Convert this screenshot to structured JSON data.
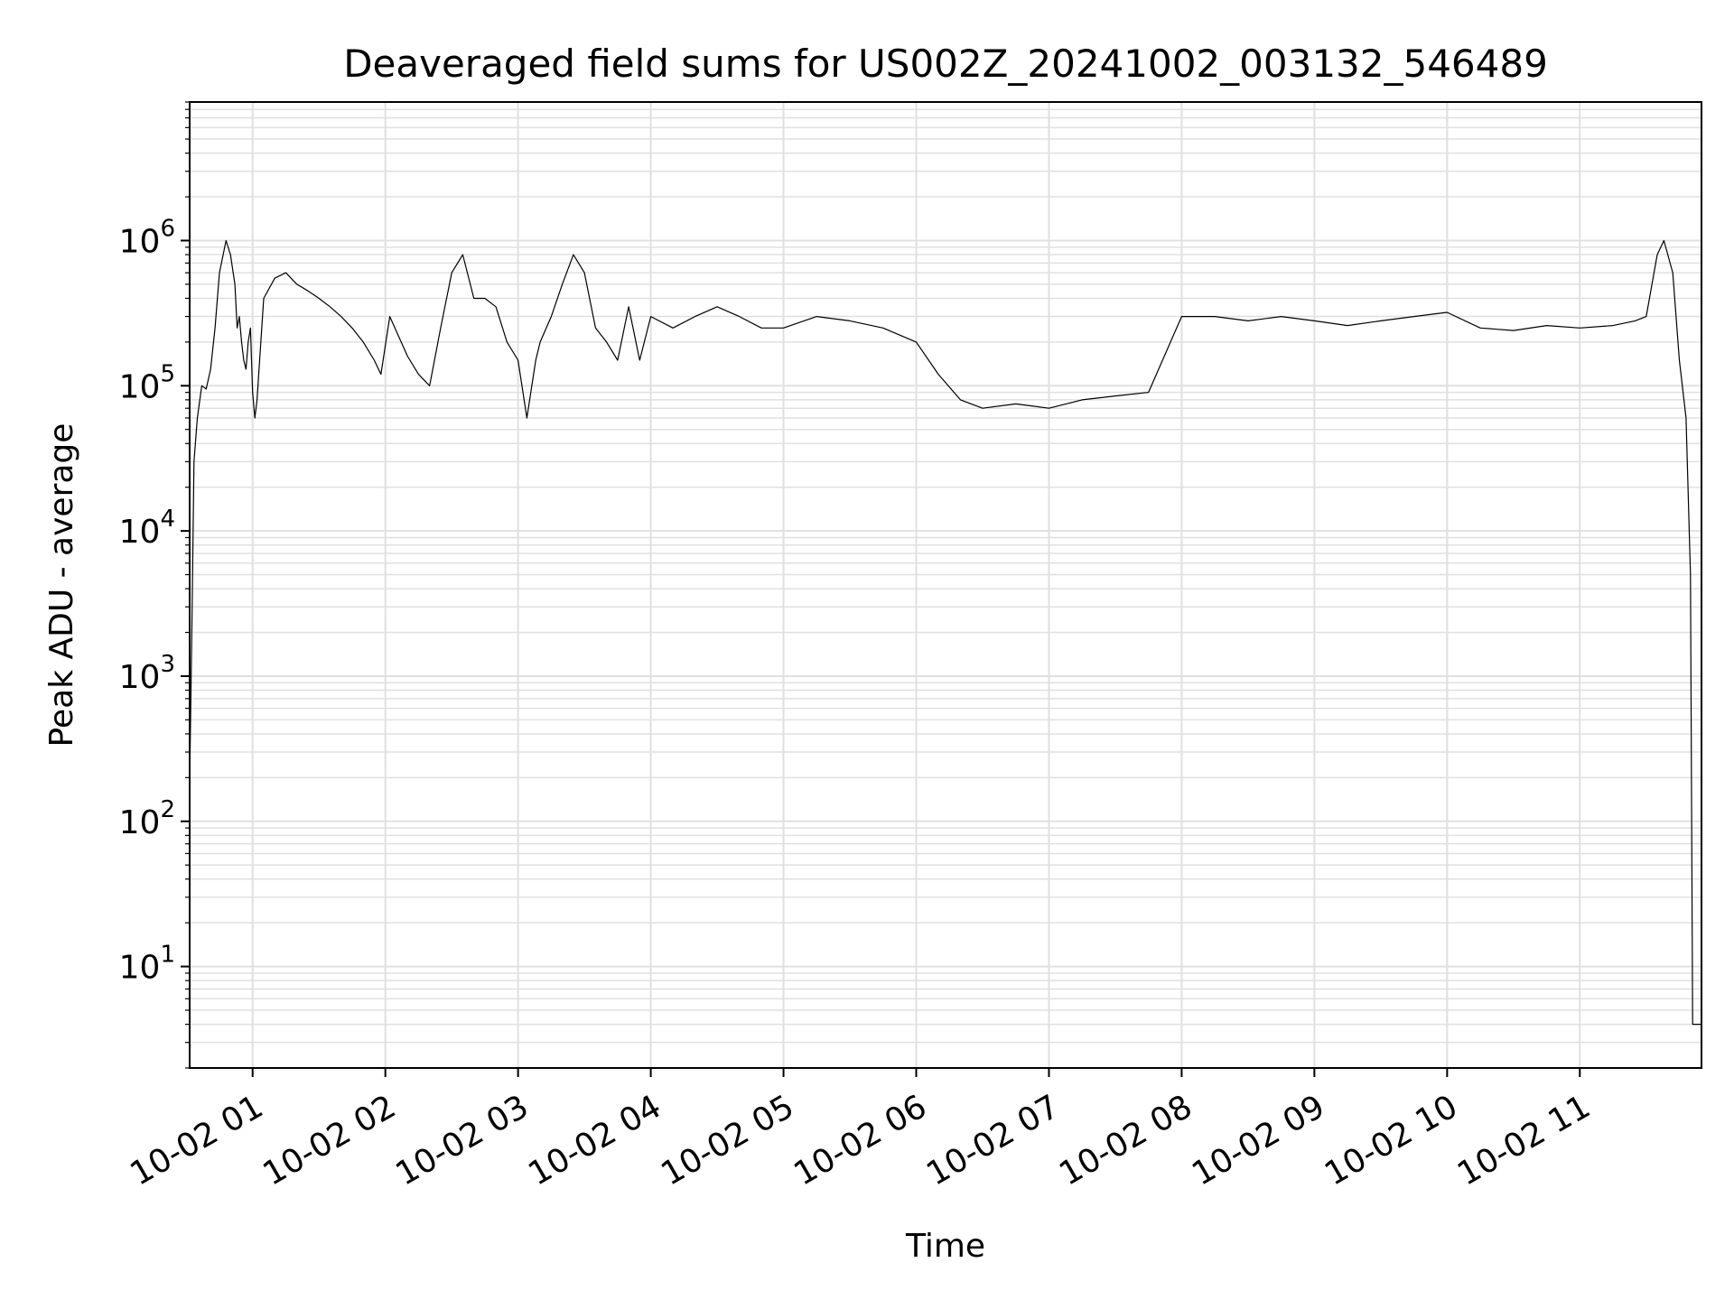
{
  "chart_data": {
    "type": "line",
    "title": "Deaveraged field sums for US002Z_20241002_003132_546489",
    "xlabel": "Time",
    "ylabel": "Peak ADU - average",
    "yscale": "log",
    "ylim": [
      2,
      9000000
    ],
    "xlim": [
      "2024-10-02 00:31:32",
      "2024-10-02 11:55:00"
    ],
    "grid": true,
    "line_color": "#000000",
    "grid_color": "#e0e0e0",
    "x_ticks": [
      {
        "value": "2024-10-02 01:00",
        "label": "10-02 01"
      },
      {
        "value": "2024-10-02 02:00",
        "label": "10-02 02"
      },
      {
        "value": "2024-10-02 03:00",
        "label": "10-02 03"
      },
      {
        "value": "2024-10-02 04:00",
        "label": "10-02 04"
      },
      {
        "value": "2024-10-02 05:00",
        "label": "10-02 05"
      },
      {
        "value": "2024-10-02 06:00",
        "label": "10-02 06"
      },
      {
        "value": "2024-10-02 07:00",
        "label": "10-02 07"
      },
      {
        "value": "2024-10-02 08:00",
        "label": "10-02 08"
      },
      {
        "value": "2024-10-02 09:00",
        "label": "10-02 09"
      },
      {
        "value": "2024-10-02 10:00",
        "label": "10-02 10"
      },
      {
        "value": "2024-10-02 11:00",
        "label": "10-02 11"
      }
    ],
    "y_ticks": [
      {
        "value": 10,
        "exp": "1"
      },
      {
        "value": 100,
        "exp": "2"
      },
      {
        "value": 1000,
        "exp": "3"
      },
      {
        "value": 10000,
        "exp": "4"
      },
      {
        "value": 100000,
        "exp": "5"
      },
      {
        "value": 1000000,
        "exp": "6"
      }
    ],
    "series": [
      {
        "x": [
          "2024-10-02 00:31:40",
          "2024-10-02 00:32:30",
          "2024-10-02 00:33:30",
          "2024-10-02 00:35:00",
          "2024-10-02 00:37:00",
          "2024-10-02 00:39:00",
          "2024-10-02 00:41:00",
          "2024-10-02 00:43:00",
          "2024-10-02 00:45:00",
          "2024-10-02 00:48:00",
          "2024-10-02 00:50:00",
          "2024-10-02 00:52:00",
          "2024-10-02 00:53:00",
          "2024-10-02 00:54:00",
          "2024-10-02 00:55:00",
          "2024-10-02 00:56:00",
          "2024-10-02 00:57:00",
          "2024-10-02 00:58:00",
          "2024-10-02 00:59:00",
          "2024-10-02 01:00:00",
          "2024-10-02 01:01:00",
          "2024-10-02 01:02:00",
          "2024-10-02 01:05:00",
          "2024-10-02 01:10:00",
          "2024-10-02 01:15:00",
          "2024-10-02 01:20:00",
          "2024-10-02 01:25:00",
          "2024-10-02 01:30:00",
          "2024-10-02 01:35:00",
          "2024-10-02 01:40:00",
          "2024-10-02 01:45:00",
          "2024-10-02 01:50:00",
          "2024-10-02 01:55:00",
          "2024-10-02 01:58:00",
          "2024-10-02 02:02:00",
          "2024-10-02 02:10:00",
          "2024-10-02 02:15:00",
          "2024-10-02 02:20:00",
          "2024-10-02 02:25:00",
          "2024-10-02 02:30:00",
          "2024-10-02 02:35:00",
          "2024-10-02 02:40:00",
          "2024-10-02 02:45:00",
          "2024-10-02 02:50:00",
          "2024-10-02 02:55:00",
          "2024-10-02 03:00:00",
          "2024-10-02 03:04:00",
          "2024-10-02 03:08:00",
          "2024-10-02 03:10:00",
          "2024-10-02 03:15:00",
          "2024-10-02 03:20:00",
          "2024-10-02 03:25:00",
          "2024-10-02 03:30:00",
          "2024-10-02 03:35:00",
          "2024-10-02 03:40:00",
          "2024-10-02 03:45:00",
          "2024-10-02 03:50:00",
          "2024-10-02 03:55:00",
          "2024-10-02 04:00:00",
          "2024-10-02 04:10:00",
          "2024-10-02 04:20:00",
          "2024-10-02 04:30:00",
          "2024-10-02 04:40:00",
          "2024-10-02 04:50:00",
          "2024-10-02 05:00:00",
          "2024-10-02 05:15:00",
          "2024-10-02 05:30:00",
          "2024-10-02 05:45:00",
          "2024-10-02 06:00:00",
          "2024-10-02 06:10:00",
          "2024-10-02 06:20:00",
          "2024-10-02 06:30:00",
          "2024-10-02 06:45:00",
          "2024-10-02 07:00:00",
          "2024-10-02 07:15:00",
          "2024-10-02 07:30:00",
          "2024-10-02 07:45:00",
          "2024-10-02 08:00:00",
          "2024-10-02 08:15:00",
          "2024-10-02 08:30:00",
          "2024-10-02 08:45:00",
          "2024-10-02 09:00:00",
          "2024-10-02 09:15:00",
          "2024-10-02 09:30:00",
          "2024-10-02 09:45:00",
          "2024-10-02 10:00:00",
          "2024-10-02 10:15:00",
          "2024-10-02 10:30:00",
          "2024-10-02 10:45:00",
          "2024-10-02 11:00:00",
          "2024-10-02 11:15:00",
          "2024-10-02 11:25:00",
          "2024-10-02 11:30:00",
          "2024-10-02 11:35:00",
          "2024-10-02 11:38:00",
          "2024-10-02 11:42:00",
          "2024-10-02 11:45:00",
          "2024-10-02 11:48:00",
          "2024-10-02 11:50:00",
          "2024-10-02 11:51:00",
          "2024-10-02 11:52:00",
          "2024-10-02 11:53:00",
          "2024-10-02 11:54:00",
          "2024-10-02 11:55:00"
        ],
        "y": [
          250,
          2000,
          30000,
          60000,
          100000,
          95000,
          130000,
          250000,
          600000,
          1000000,
          800000,
          500000,
          250000,
          300000,
          200000,
          150000,
          130000,
          200000,
          250000,
          90000,
          60000,
          80000,
          400000,
          550000,
          600000,
          500000,
          450000,
          400000,
          350000,
          300000,
          250000,
          200000,
          150000,
          120000,
          300000,
          160000,
          120000,
          100000,
          250000,
          600000,
          800000,
          400000,
          400000,
          350000,
          200000,
          150000,
          60000,
          150000,
          200000,
          300000,
          500000,
          800000,
          600000,
          250000,
          200000,
          150000,
          350000,
          150000,
          300000,
          250000,
          300000,
          350000,
          300000,
          250000,
          250000,
          300000,
          280000,
          250000,
          200000,
          120000,
          80000,
          70000,
          75000,
          70000,
          80000,
          85000,
          90000,
          300000,
          300000,
          280000,
          300000,
          280000,
          260000,
          280000,
          300000,
          320000,
          250000,
          240000,
          260000,
          250000,
          260000,
          280000,
          300000,
          800000,
          1000000,
          600000,
          150000,
          60000,
          5000,
          4,
          4,
          4,
          4,
          4
        ]
      }
    ]
  }
}
